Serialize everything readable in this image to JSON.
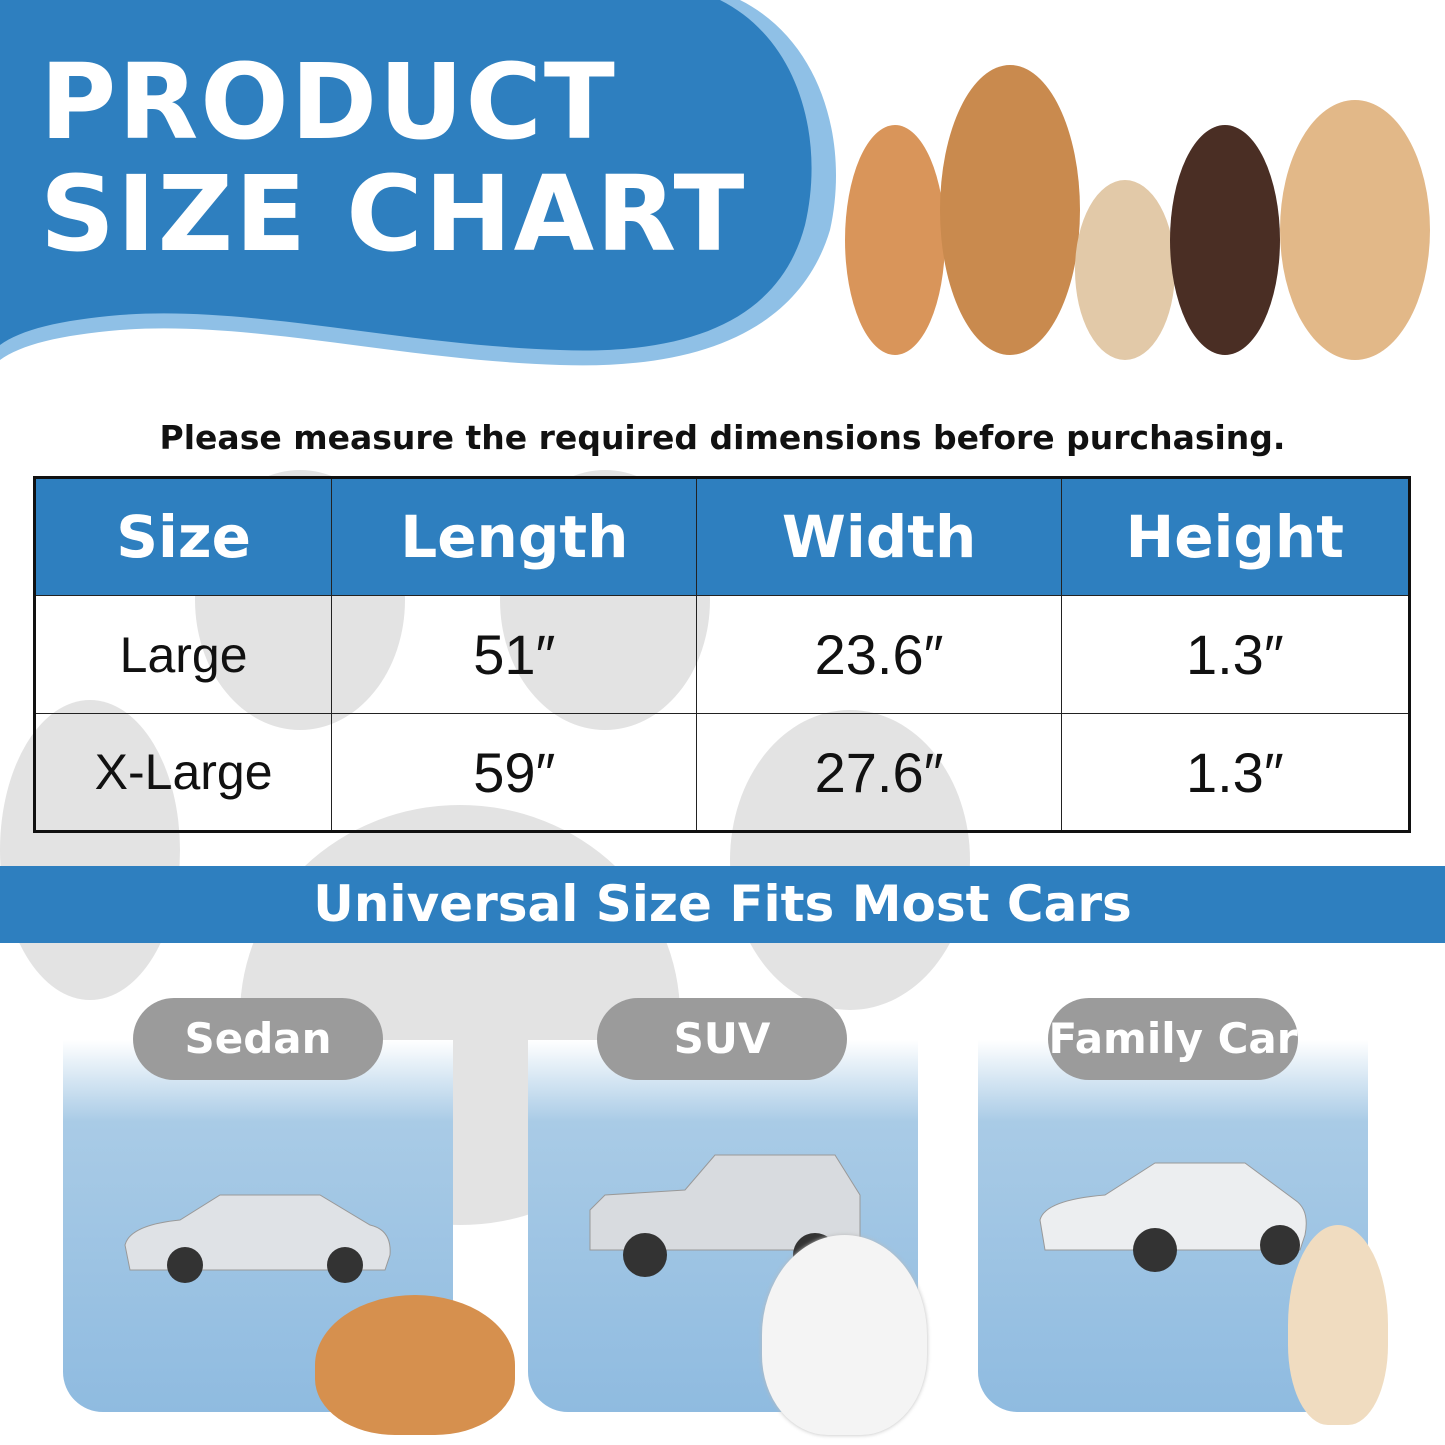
{
  "header": {
    "title_line1": "PRODUCT",
    "title_line2": "SIZE CHART"
  },
  "instruction": "Please measure the required dimensions before purchasing.",
  "table": {
    "headers": [
      "Size",
      "Length",
      "Width",
      "Height"
    ],
    "rows": [
      [
        "Large",
        "51″",
        "23.6″",
        "1.3″"
      ],
      [
        "X-Large",
        "59″",
        "27.6″",
        "1.3″"
      ]
    ]
  },
  "banner": "Universal Size Fits Most Cars",
  "cars": [
    {
      "label": "Sedan"
    },
    {
      "label": "SUV"
    },
    {
      "label": "Family Car"
    }
  ],
  "colors": {
    "brand_blue": "#2e7fbf",
    "light_blue": "#8fbbe0",
    "pill_grey": "#9b9b9b"
  }
}
